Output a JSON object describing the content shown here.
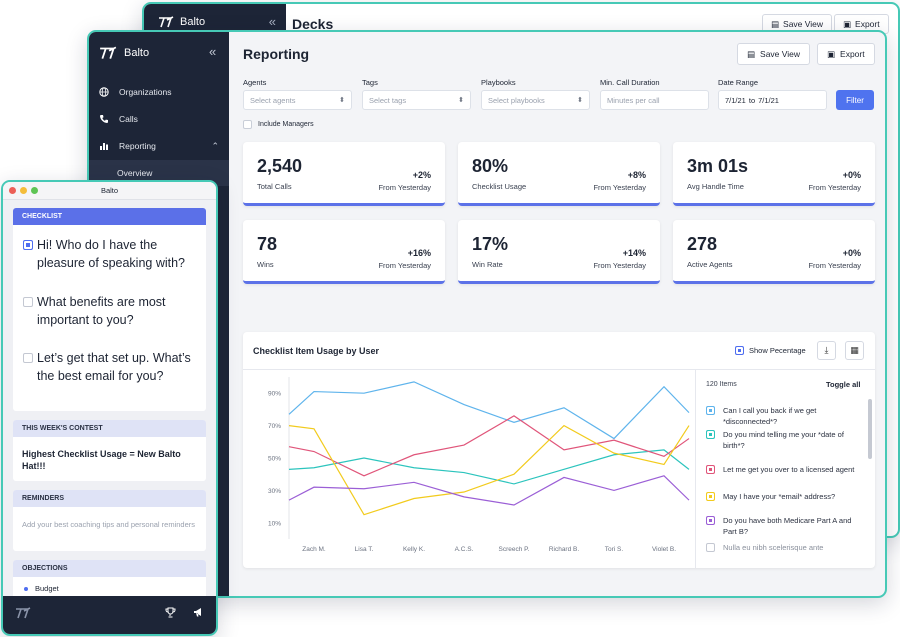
{
  "back_window": {
    "brand": "Balto",
    "title": "Decks",
    "save_view": "Save View",
    "export": "Export"
  },
  "main_window": {
    "brand": "Balto",
    "collapse_glyph": "«",
    "nav": [
      {
        "label": "Organizations",
        "icon": "globe-icon"
      },
      {
        "label": "Calls",
        "icon": "phone-icon"
      },
      {
        "label": "Reporting",
        "icon": "bar-chart-icon"
      }
    ],
    "nav_sub": "Overview",
    "page_title": "Reporting",
    "save_view": "Save View",
    "export": "Export",
    "filters": {
      "agents": {
        "label": "Agents",
        "placeholder": "Select agents"
      },
      "tags": {
        "label": "Tags",
        "placeholder": "Select tags"
      },
      "playbooks": {
        "label": "Playbooks",
        "placeholder": "Select playbooks"
      },
      "min_call": {
        "label": "Min. Call Duration",
        "placeholder": "Minutes per call"
      },
      "date_range": {
        "label": "Date Range",
        "from": "7/1/21",
        "to_word": "to",
        "to": "7/1/21"
      },
      "filter_button": "Filter",
      "include_managers": "Include Managers"
    },
    "cards": [
      {
        "value": "2,540",
        "label": "Total Calls",
        "change": "+2%",
        "sub": "From Yesterday"
      },
      {
        "value": "80%",
        "label": "Checklist Usage",
        "change": "+8%",
        "sub": "From Yesterday"
      },
      {
        "value": "3m 01s",
        "label": "Avg Handle Time",
        "change": "+0%",
        "sub": "From Yesterday"
      },
      {
        "value": "78",
        "label": "Wins",
        "change": "+16%",
        "sub": "From Yesterday"
      },
      {
        "value": "17%",
        "label": "Win Rate",
        "change": "+14%",
        "sub": "From Yesterday"
      },
      {
        "value": "278",
        "label": "Active Agents",
        "change": "+0%",
        "sub": "From Yesterday"
      }
    ],
    "chart_panel": {
      "title": "Checklist Item Usage by User",
      "show_percentage": "Show Pecentage",
      "items_count": "120 Items",
      "toggle_all": "Toggle all",
      "legend": [
        {
          "label": "Can I call you back if we get *disconnected*?",
          "color": "#5fb4ec",
          "checked": true
        },
        {
          "label": "Do you mind telling me your *date of birth*?",
          "color": "#2cc4bd",
          "checked": true
        },
        {
          "label": "Let me get you over to a licensed agent",
          "color": "#e0557a",
          "checked": true
        },
        {
          "label": "May I have your *email* address?",
          "color": "#f2cb1d",
          "checked": true
        },
        {
          "label": "Do you have both Medicare Part A and Part B?",
          "color": "#9b5fd6",
          "checked": true
        },
        {
          "label": "Nulla eu nibh scelerisque ante",
          "color": "#c4c8d2",
          "checked": false
        }
      ]
    }
  },
  "chart_data": {
    "type": "line",
    "categories": [
      "Zach M.",
      "Lisa T.",
      "Kelly K.",
      "A.C.S.",
      "Screech P.",
      "Richard B.",
      "Tori S.",
      "Violet B."
    ],
    "y_ticks": [
      "90%",
      "70%",
      "50%",
      "30%",
      "10%"
    ],
    "ylim": [
      0,
      100
    ],
    "grid": false,
    "series": [
      {
        "name": "Can I call you back if we get *disconnected*?",
        "color": "#5fb4ec",
        "x": [
          0,
          0.5,
          1.5,
          2.5,
          3.5,
          4.5,
          5.5,
          6.5,
          7.5,
          8
        ],
        "values": [
          77,
          91,
          90,
          97,
          83,
          72,
          81,
          62,
          94,
          78
        ]
      },
      {
        "name": "Do you mind telling me your *date of birth*?",
        "color": "#2cc4bd",
        "x": [
          0,
          0.5,
          1.5,
          2.5,
          3.5,
          4.5,
          5.5,
          6.5,
          7.5,
          8
        ],
        "values": [
          43,
          44,
          50,
          44,
          41,
          34,
          43,
          52,
          55,
          43
        ]
      },
      {
        "name": "Let me get you over to a licensed agent",
        "color": "#e0557a",
        "x": [
          0,
          0.5,
          1.5,
          2.5,
          3.5,
          4.5,
          5.5,
          6.5,
          7.5,
          8
        ],
        "values": [
          57,
          54,
          39,
          52,
          58,
          76,
          55,
          61,
          51,
          62
        ]
      },
      {
        "name": "May I have your *email* address?",
        "color": "#f2cb1d",
        "x": [
          0,
          0.5,
          1.5,
          2.5,
          3.5,
          4.5,
          5.5,
          6.5,
          7.5,
          8
        ],
        "values": [
          70,
          68,
          15,
          25,
          29,
          40,
          70,
          53,
          46,
          70
        ]
      },
      {
        "name": "Do you have both Medicare Part A and Part B?",
        "color": "#9b5fd6",
        "x": [
          0,
          0.5,
          1.5,
          2.5,
          3.5,
          4.5,
          5.5,
          6.5,
          7.5,
          8
        ],
        "values": [
          24,
          32,
          31,
          35,
          26,
          21,
          38,
          30,
          39,
          24
        ]
      }
    ]
  },
  "small_window": {
    "title": "Balto",
    "checklist_header": "CHECKLIST",
    "checklist": [
      {
        "text": "Hi! Who do I have the pleasure of speaking with?",
        "checked": true
      },
      {
        "text": "What benefits are most important to you?",
        "checked": false
      },
      {
        "text": "Let’s get that set up. What’s the best email for you?",
        "checked": false
      }
    ],
    "contest_header": "THIS WEEK'S CONTEST",
    "contest_text": "Highest Checklist Usage = New Balto Hat!!!",
    "reminders_header": "REMINDERS",
    "reminders_text": "Add your best coaching tips and personal reminders",
    "objections_header": "OBJECTIONS",
    "objection_item": "Budget"
  }
}
